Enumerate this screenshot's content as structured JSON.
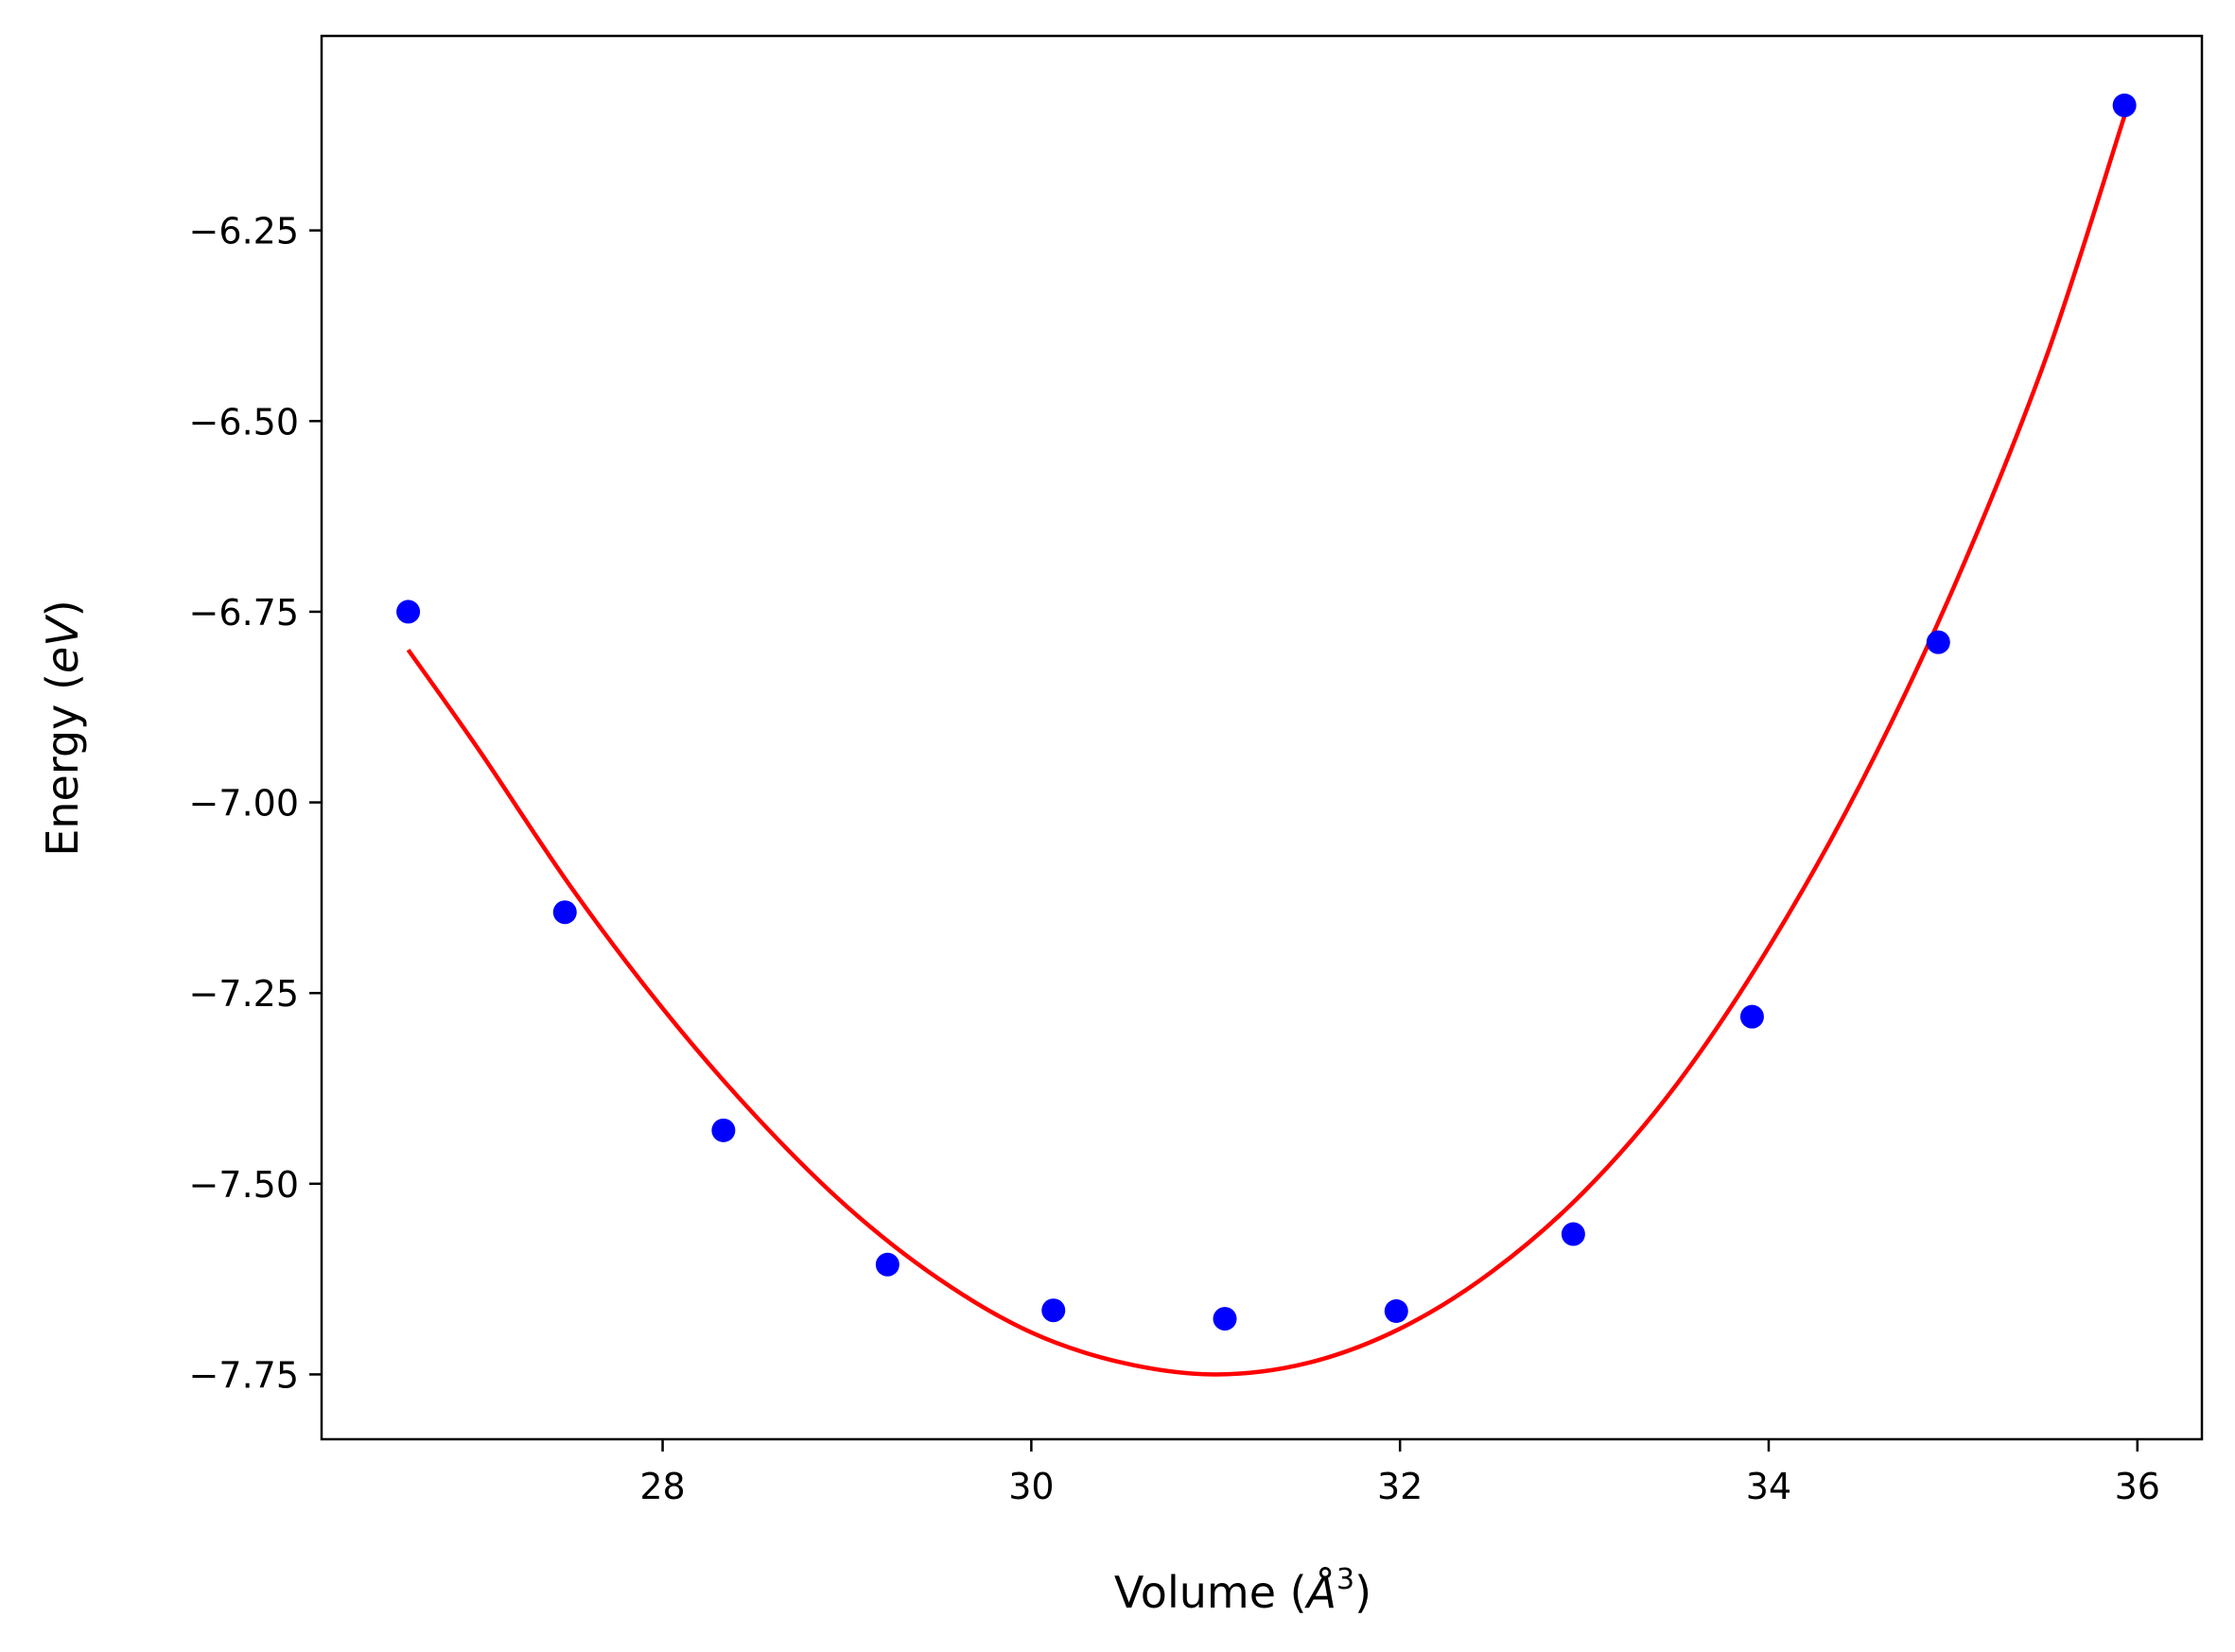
{
  "chart_data": {
    "type": "scatter",
    "title": "",
    "xlabel": {
      "prefix": "Volume (",
      "unit_symbol": "Å",
      "unit_power": "3",
      "suffix": ")"
    },
    "ylabel": {
      "prefix": "Energy (",
      "unit": "eV",
      "suffix": ")"
    },
    "xlim": [
      26.15,
      36.35
    ],
    "ylim": [
      -7.835,
      -5.995
    ],
    "xticks": [
      28,
      30,
      32,
      34,
      36
    ],
    "xtick_labels": [
      "28",
      "30",
      "32",
      "34",
      "36"
    ],
    "yticks": [
      -6.25,
      -6.5,
      -6.75,
      -7.0,
      -7.25,
      -7.5,
      -7.75
    ],
    "ytick_labels": [
      "−6.25",
      "−6.50",
      "−6.75",
      "−7.00",
      "−7.25",
      "−7.50",
      "−7.75"
    ],
    "grid": false,
    "series": [
      {
        "kind": "points",
        "color": "#0000ff",
        "x": [
          26.62,
          27.47,
          28.33,
          29.22,
          30.12,
          31.05,
          31.98,
          32.94,
          33.91,
          34.92,
          35.93
        ],
        "y": [
          -6.75,
          -7.144,
          -7.43,
          -7.606,
          -7.666,
          -7.677,
          -7.667,
          -7.566,
          -7.281,
          -6.79,
          -6.086
        ]
      },
      {
        "kind": "fit_curve",
        "color": "#ff0000",
        "x": [
          26.62,
          27.0,
          27.5,
          28.0,
          28.5,
          29.0,
          29.5,
          30.0,
          30.5,
          31.0,
          31.5,
          32.0,
          32.5,
          33.0,
          33.5,
          34.0,
          34.5,
          35.0,
          35.5,
          35.93
        ],
        "y": [
          -6.8,
          -6.93,
          -7.11,
          -7.27,
          -7.41,
          -7.53,
          -7.625,
          -7.695,
          -7.735,
          -7.75,
          -7.735,
          -7.69,
          -7.615,
          -7.51,
          -7.37,
          -7.19,
          -6.975,
          -6.72,
          -6.42,
          -6.1
        ]
      }
    ]
  }
}
